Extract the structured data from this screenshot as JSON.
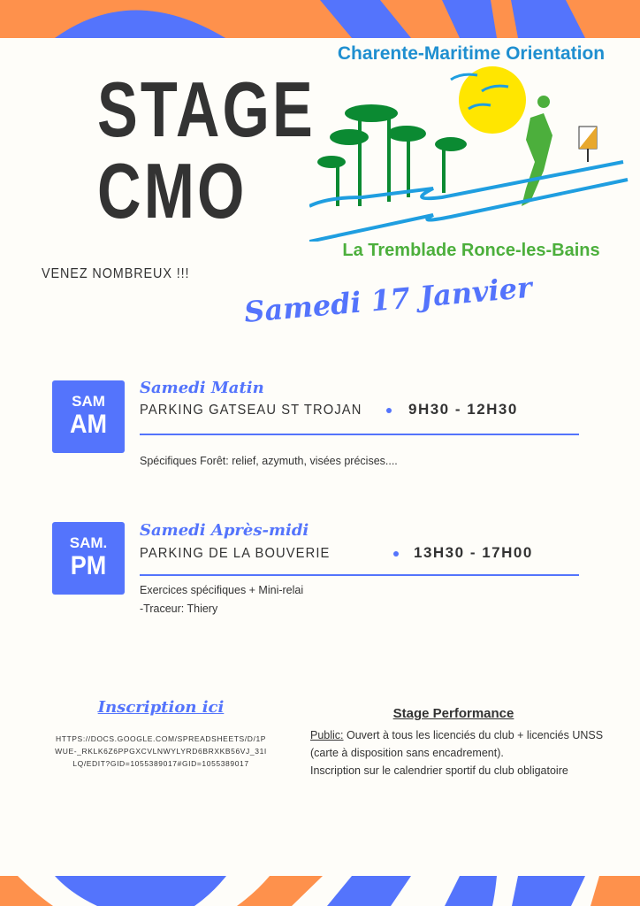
{
  "colors": {
    "blue": "#5474fc",
    "orange": "#fe914c",
    "background": "#fefdf9",
    "text": "#333333"
  },
  "header": {
    "title_line1": "STAGE",
    "title_line2": "CMO"
  },
  "logo": {
    "top_text": "Charente-Maritime Orientation",
    "bottom_text": "La Tremblade  Ronce-les-Bains"
  },
  "tagline": "VENEZ NOMBREUX !!!",
  "date": "Samedi 17 Janvier",
  "sessions": [
    {
      "badge_small": "SAM",
      "badge_big": "AM",
      "title": "Samedi Matin",
      "location": "PARKING GATSEAU ST TROJAN",
      "time": "9H30 - 12H30",
      "desc": [
        "Spécifiques Forêt: relief, azymuth, visées précises...."
      ]
    },
    {
      "badge_small": "SAM.",
      "badge_big": "PM",
      "title": "Samedi Après-midi",
      "location": "PARKING DE LA BOUVERIE",
      "time": "13H30 - 17H00",
      "desc": [
        "Exercices spécifiques + Mini-relai",
        "-Traceur: Thiery"
      ]
    }
  ],
  "inscription": {
    "label": "Inscription ici",
    "url": "HTTPS://DOCS.GOOGLE.COM/SPREADSHEETS/D/1PWUE-_RKLK6Z6PPGXCVLNWYLYRD6BRXKB56VJ_31ILQ/EDIT?GID=1055389017#GID=1055389017"
  },
  "performance": {
    "title": "Stage Performance",
    "public_label": "Public:",
    "line1": " Ouvert à tous les licenciés du club + licenciés UNSS",
    "line2": "(carte à disposition sans encadrement).",
    "line3": "Inscription sur le calendrier sportif du club obligatoire"
  }
}
